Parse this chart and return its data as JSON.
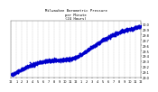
{
  "title_line1": "Milwaukee Barometric Pressure",
  "title_line2": "per Minute",
  "title_line3": "(24 Hours)",
  "dot_color": "#0000cc",
  "background_color": "#ffffff",
  "grid_color": "#aaaaaa",
  "ylabel_color": "#000000",
  "xlabel_color": "#000000",
  "ylim": [
    29.0,
    30.05
  ],
  "xlim": [
    0,
    1440
  ],
  "yticks": [
    29.0,
    29.1,
    29.2,
    29.3,
    29.4,
    29.5,
    29.6,
    29.7,
    29.8,
    29.9,
    30.0
  ],
  "xtick_positions": [
    0,
    60,
    120,
    180,
    240,
    300,
    360,
    420,
    480,
    540,
    600,
    660,
    720,
    780,
    840,
    900,
    960,
    1020,
    1080,
    1140,
    1200,
    1260,
    1320,
    1380,
    1440
  ],
  "xtick_labels": [
    "12",
    "1",
    "2",
    "3",
    "4",
    "5",
    "6",
    "7",
    "8",
    "9",
    "10",
    "11",
    "12",
    "1",
    "2",
    "3",
    "4",
    "5",
    "6",
    "7",
    "8",
    "9",
    "10",
    "11",
    "12"
  ],
  "dot_size": 1.5
}
